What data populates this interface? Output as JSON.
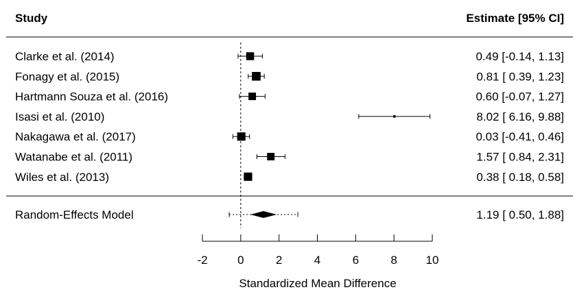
{
  "chart_data": {
    "type": "forest",
    "columns": {
      "left": "Study",
      "right": "Estimate [95% CI]"
    },
    "studies": [
      {
        "label": "Clarke et al. (2014)",
        "estimate": 0.49,
        "lower": -0.14,
        "upper": 1.13,
        "ci_text": "0.49 [-0.14, 1.13]",
        "weight": 1.0
      },
      {
        "label": "Fonagy et al. (2015)",
        "estimate": 0.81,
        "lower": 0.39,
        "upper": 1.23,
        "ci_text": "0.81 [ 0.39, 1.23]",
        "weight": 1.1
      },
      {
        "label": "Hartmann Souza et al. (2016)",
        "estimate": 0.6,
        "lower": -0.07,
        "upper": 1.27,
        "ci_text": "0.60 [-0.07, 1.27]",
        "weight": 0.95
      },
      {
        "label": "Isasi et al. (2010)",
        "estimate": 8.02,
        "lower": 6.16,
        "upper": 9.88,
        "ci_text": "8.02 [ 6.16, 9.88]",
        "weight": 0.15
      },
      {
        "label": "Nakagawa et al. (2017)",
        "estimate": 0.03,
        "lower": -0.41,
        "upper": 0.46,
        "ci_text": "0.03 [-0.41, 0.46]",
        "weight": 1.05
      },
      {
        "label": "Watanabe et al. (2011)",
        "estimate": 1.57,
        "lower": 0.84,
        "upper": 2.31,
        "ci_text": "1.57 [ 0.84, 2.31]",
        "weight": 0.95
      },
      {
        "label": "Wiles et al. (2013)",
        "estimate": 0.38,
        "lower": 0.18,
        "upper": 0.58,
        "ci_text": "0.38 [ 0.18, 0.58]",
        "weight": 1.05
      }
    ],
    "summary": {
      "label": "Random-Effects Model",
      "estimate": 1.19,
      "lower": 0.5,
      "upper": 1.88,
      "pi_lower": -0.6,
      "pi_upper": 2.98,
      "ci_text": "1.19 [ 0.50, 1.88]"
    },
    "reference_line": 0,
    "xlabel": "Standardized Mean Difference",
    "xlim": [
      -2,
      10
    ],
    "xticks": [
      -2,
      0,
      2,
      4,
      6,
      8,
      10
    ]
  }
}
